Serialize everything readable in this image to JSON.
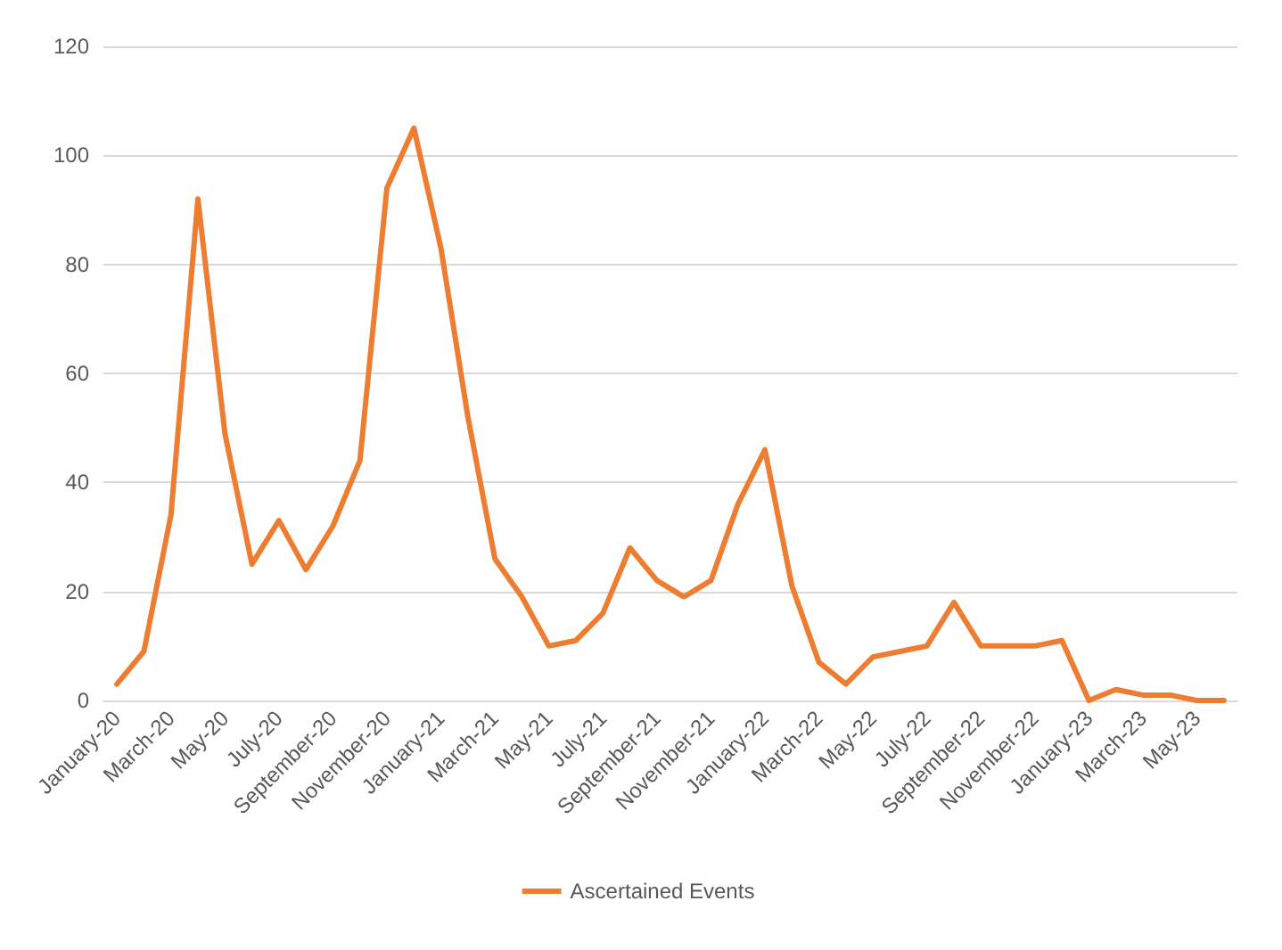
{
  "chart_data": {
    "type": "line",
    "categories": [
      "January-20",
      null,
      "March-20",
      null,
      "May-20",
      null,
      "July-20",
      null,
      "September-20",
      null,
      "November-20",
      null,
      "January-21",
      null,
      "March-21",
      null,
      "May-21",
      null,
      "July-21",
      null,
      "September-21",
      null,
      "November-21",
      null,
      "January-22",
      null,
      "March-22",
      null,
      "May-22",
      null,
      "July-22",
      null,
      "September-22",
      null,
      "November-22",
      null,
      "January-23",
      null,
      "March-23",
      null,
      "May-23",
      null
    ],
    "series": [
      {
        "name": "Ascertained Events",
        "color": "#ed7d31",
        "values": [
          3,
          9,
          34,
          92,
          49,
          25,
          33,
          24,
          32,
          44,
          94,
          105,
          83,
          52,
          26,
          19,
          10,
          11,
          16,
          28,
          22,
          19,
          22,
          36,
          46,
          21,
          7,
          3,
          8,
          9,
          10,
          18,
          10,
          10,
          10,
          11,
          0,
          2,
          1,
          1,
          0,
          0
        ]
      }
    ],
    "ylim": [
      0,
      120
    ],
    "yticks": [
      0,
      20,
      40,
      60,
      80,
      100,
      120
    ],
    "grid": "y",
    "legend": "bottom",
    "marker": "none",
    "line_style": "solid"
  }
}
